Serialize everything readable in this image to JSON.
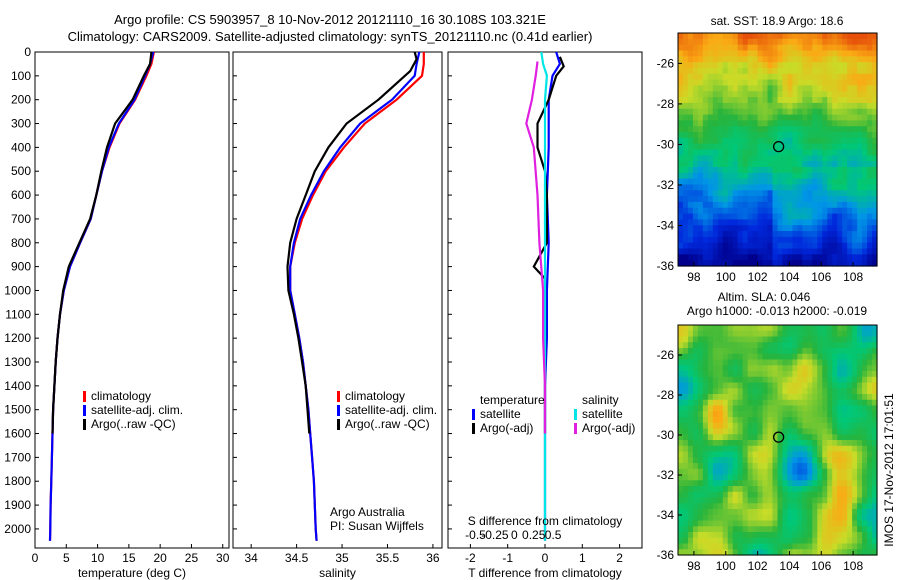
{
  "header": {
    "title_line1": "Argo profile: CS 5903957_8 10-Nov-2012 20121110_16 30.108S 103.321E",
    "title_line2": "Climatology: CARS2009. Satellite-adjusted climatology: synTS_20121110.nc (0.41d earlier)"
  },
  "colors": {
    "climatology": "#ff0000",
    "satellite": "#0000ff",
    "argo": "#000000",
    "salinity_satellite": "#00e5e5",
    "salinity_argo": "#e020e0"
  },
  "chart_data": [
    {
      "type": "line",
      "id": "temperature",
      "xlabel": "temperature (deg C)",
      "ylabel": "",
      "xlim": [
        0,
        31
      ],
      "ylim": [
        2080,
        0
      ],
      "xticks": [
        0,
        5,
        10,
        15,
        20,
        25,
        30
      ],
      "yticks": [
        0,
        100,
        200,
        300,
        400,
        500,
        600,
        700,
        800,
        900,
        1000,
        1100,
        1200,
        1300,
        1400,
        1500,
        1600,
        1700,
        1800,
        1900,
        2000
      ],
      "legend": {
        "position": "lower-center",
        "entries": [
          "climatology",
          "satellite-adj. clim.",
          "Argo(..raw -QC)"
        ]
      },
      "series": [
        {
          "name": "climatology",
          "color": "#ff0000",
          "points": [
            [
              19,
              0
            ],
            [
              18.6,
              50
            ],
            [
              17.8,
              100
            ],
            [
              16,
              200
            ],
            [
              13.5,
              300
            ],
            [
              11.9,
              400
            ],
            [
              10.7,
              500
            ],
            [
              9.8,
              600
            ],
            [
              8.9,
              700
            ],
            [
              7.2,
              800
            ],
            [
              5.6,
              900
            ],
            [
              4.6,
              1000
            ],
            [
              4,
              1100
            ],
            [
              3.6,
              1200
            ],
            [
              3.3,
              1300
            ],
            [
              3.1,
              1400
            ],
            [
              2.9,
              1500
            ],
            [
              2.8,
              1600
            ],
            [
              2.7,
              1700
            ],
            [
              2.6,
              1800
            ],
            [
              2.5,
              1900
            ],
            [
              2.45,
              2000
            ],
            [
              2.4,
              2050
            ]
          ]
        },
        {
          "name": "satellite-adj. clim.",
          "color": "#0000ff",
          "points": [
            [
              18.9,
              0
            ],
            [
              18.4,
              50
            ],
            [
              17.6,
              100
            ],
            [
              15.9,
              200
            ],
            [
              13.4,
              300
            ],
            [
              11.8,
              400
            ],
            [
              10.7,
              500
            ],
            [
              9.8,
              600
            ],
            [
              8.9,
              700
            ],
            [
              7.2,
              800
            ],
            [
              5.6,
              900
            ],
            [
              4.6,
              1000
            ],
            [
              4,
              1100
            ],
            [
              3.6,
              1200
            ],
            [
              3.3,
              1300
            ],
            [
              3.1,
              1400
            ],
            [
              2.9,
              1500
            ],
            [
              2.8,
              1600
            ],
            [
              2.7,
              1700
            ],
            [
              2.6,
              1800
            ],
            [
              2.5,
              1900
            ],
            [
              2.45,
              2000
            ],
            [
              2.4,
              2050
            ]
          ]
        },
        {
          "name": "Argo(..raw -QC)",
          "color": "#000000",
          "points": [
            [
              18.6,
              0
            ],
            [
              18.4,
              50
            ],
            [
              17.4,
              100
            ],
            [
              15.6,
              200
            ],
            [
              12.8,
              300
            ],
            [
              11.5,
              400
            ],
            [
              10.6,
              500
            ],
            [
              9.8,
              600
            ],
            [
              8.8,
              700
            ],
            [
              7.1,
              800
            ],
            [
              5.4,
              900
            ],
            [
              4.5,
              1000
            ],
            [
              4,
              1100
            ],
            [
              3.6,
              1200
            ],
            [
              3.3,
              1300
            ],
            [
              3.1,
              1400
            ],
            [
              2.9,
              1500
            ],
            [
              2.8,
              1600
            ]
          ]
        }
      ]
    },
    {
      "type": "line",
      "id": "salinity",
      "xlabel": "salinity",
      "ylabel": "",
      "xlim": [
        33.8,
        36.1
      ],
      "ylim": [
        2080,
        0
      ],
      "xticks": [
        34,
        34.5,
        35,
        35.5,
        36
      ],
      "legend": {
        "position": "lower-center",
        "entries": [
          "climatology",
          "satellite-adj. clim.",
          "Argo(..raw -QC)"
        ]
      },
      "annotation": [
        "Argo Australia",
        "PI: Susan Wijffels"
      ],
      "series": [
        {
          "name": "climatology",
          "color": "#ff0000",
          "points": [
            [
              35.9,
              0
            ],
            [
              35.9,
              50
            ],
            [
              35.88,
              100
            ],
            [
              35.6,
              200
            ],
            [
              35.25,
              300
            ],
            [
              35.02,
              400
            ],
            [
              34.82,
              500
            ],
            [
              34.68,
              600
            ],
            [
              34.56,
              700
            ],
            [
              34.48,
              800
            ],
            [
              34.43,
              900
            ],
            [
              34.43,
              1000
            ],
            [
              34.48,
              1100
            ],
            [
              34.53,
              1200
            ],
            [
              34.57,
              1300
            ],
            [
              34.6,
              1400
            ],
            [
              34.63,
              1500
            ],
            [
              34.65,
              1600
            ],
            [
              34.67,
              1700
            ],
            [
              34.69,
              1800
            ],
            [
              34.7,
              1900
            ],
            [
              34.71,
              2000
            ],
            [
              34.72,
              2050
            ]
          ]
        },
        {
          "name": "satellite-adj. clim.",
          "color": "#0000ff",
          "points": [
            [
              35.85,
              0
            ],
            [
              35.82,
              50
            ],
            [
              35.8,
              100
            ],
            [
              35.55,
              200
            ],
            [
              35.2,
              300
            ],
            [
              34.98,
              400
            ],
            [
              34.8,
              500
            ],
            [
              34.66,
              600
            ],
            [
              34.54,
              700
            ],
            [
              34.47,
              800
            ],
            [
              34.43,
              900
            ],
            [
              34.43,
              1000
            ],
            [
              34.48,
              1100
            ],
            [
              34.53,
              1200
            ],
            [
              34.57,
              1300
            ],
            [
              34.6,
              1400
            ],
            [
              34.63,
              1500
            ],
            [
              34.65,
              1600
            ],
            [
              34.67,
              1700
            ],
            [
              34.69,
              1800
            ],
            [
              34.7,
              1900
            ],
            [
              34.71,
              2000
            ],
            [
              34.72,
              2050
            ]
          ]
        },
        {
          "name": "Argo(..raw -QC)",
          "color": "#000000",
          "points": [
            [
              35.8,
              0
            ],
            [
              35.82,
              30
            ],
            [
              35.75,
              80
            ],
            [
              35.4,
              200
            ],
            [
              35.05,
              300
            ],
            [
              34.85,
              400
            ],
            [
              34.7,
              500
            ],
            [
              34.6,
              600
            ],
            [
              34.5,
              700
            ],
            [
              34.43,
              800
            ],
            [
              34.4,
              900
            ],
            [
              34.41,
              1000
            ],
            [
              34.47,
              1100
            ],
            [
              34.52,
              1200
            ],
            [
              34.56,
              1300
            ],
            [
              34.6,
              1400
            ],
            [
              34.62,
              1500
            ],
            [
              34.64,
              1600
            ]
          ]
        }
      ]
    },
    {
      "type": "line",
      "id": "difference",
      "xlabel": "T difference from climatology",
      "xlabel_top": "S difference from climatology",
      "ylabel": "",
      "xlim": [
        -2.6,
        2.6
      ],
      "ylim": [
        2080,
        0
      ],
      "xticks": [
        -2,
        -1,
        0,
        1,
        2
      ],
      "xticks_top": [
        {
          "value": -0.5,
          "label": "-0.5"
        },
        {
          "value": -0.25,
          "label": "-0.25"
        },
        {
          "value": 0,
          "label": "0"
        },
        {
          "value": 0.25,
          "label": "0.25"
        },
        {
          "value": 0.5,
          "label": "0.5"
        }
      ],
      "legend": {
        "position": "lower-center",
        "groups": [
          {
            "title": "temperature",
            "entries": [
              "satellite",
              "Argo(-adj)"
            ]
          },
          {
            "title": "salinity",
            "entries": [
              "satellite",
              "Argo(-adj)"
            ]
          }
        ]
      },
      "series": [
        {
          "name": "temperature satellite",
          "color": "#0000ff",
          "points": [
            [
              0.3,
              0
            ],
            [
              0.4,
              50
            ],
            [
              0.2,
              100
            ],
            [
              0.1,
              200
            ],
            [
              0.1,
              400
            ],
            [
              0.05,
              600
            ],
            [
              0.1,
              800
            ],
            [
              0.05,
              1000
            ],
            [
              0.05,
              1200
            ],
            [
              0,
              1400
            ],
            [
              0,
              1600
            ],
            [
              0,
              1800
            ],
            [
              0,
              2000
            ],
            [
              0,
              2050
            ]
          ]
        },
        {
          "name": "temperature Argo(-adj)",
          "color": "#000000",
          "points": [
            [
              0.4,
              20
            ],
            [
              0.5,
              60
            ],
            [
              0.3,
              100
            ],
            [
              0.1,
              200
            ],
            [
              -0.2,
              300
            ],
            [
              -0.2,
              400
            ],
            [
              0,
              500
            ],
            [
              0.05,
              600
            ],
            [
              0.05,
              800
            ],
            [
              -0.3,
              900
            ],
            [
              0,
              950
            ],
            [
              0,
              1000
            ],
            [
              0,
              1200
            ],
            [
              0,
              1400
            ],
            [
              0,
              1600
            ]
          ]
        },
        {
          "name": "salinity satellite",
          "color": "#00e5e5",
          "points": [
            [
              -0.1,
              0
            ],
            [
              -0.05,
              50
            ],
            [
              0.05,
              100
            ],
            [
              0,
              200
            ],
            [
              0,
              400
            ],
            [
              0,
              600
            ],
            [
              0,
              800
            ],
            [
              0,
              1000
            ],
            [
              0,
              1200
            ],
            [
              0,
              1400
            ],
            [
              0,
              1600
            ],
            [
              0,
              1800
            ],
            [
              0,
              2000
            ],
            [
              0,
              2050
            ]
          ]
        },
        {
          "name": "salinity Argo(-adj)",
          "color": "#e020e0",
          "points": [
            [
              -0.2,
              40
            ],
            [
              -0.25,
              100
            ],
            [
              -0.35,
              200
            ],
            [
              -0.5,
              300
            ],
            [
              -0.3,
              400
            ],
            [
              -0.2,
              600
            ],
            [
              -0.15,
              800
            ],
            [
              -0.05,
              1000
            ],
            [
              -0.05,
              1200
            ],
            [
              0,
              1400
            ],
            [
              0,
              1600
            ]
          ]
        }
      ]
    },
    {
      "type": "heatmap",
      "id": "sst_map",
      "title": "sat. SST: 18.9 Argo: 18.6",
      "xlim": [
        97,
        109.5
      ],
      "ylim": [
        -36,
        -24.5
      ],
      "xticks": [
        98,
        100,
        102,
        104,
        106,
        108
      ],
      "yticks": [
        -26,
        -28,
        -30,
        -32,
        -34,
        -36
      ],
      "marker": {
        "lon": 103.321,
        "lat": -30.108
      }
    },
    {
      "type": "heatmap",
      "id": "sla_map",
      "title_line1": "Altim. SLA: 0.046",
      "title_line2": "Argo h1000: -0.013 h2000: -0.019",
      "xlim": [
        97,
        109.5
      ],
      "ylim": [
        -36,
        -24.5
      ],
      "xticks": [
        98,
        100,
        102,
        104,
        106,
        108
      ],
      "yticks": [
        -26,
        -28,
        -30,
        -32,
        -34,
        -36
      ],
      "marker": {
        "lon": 103.321,
        "lat": -30.108
      },
      "side_label": "IMOS 17-Nov-2012 17:01:51"
    }
  ]
}
